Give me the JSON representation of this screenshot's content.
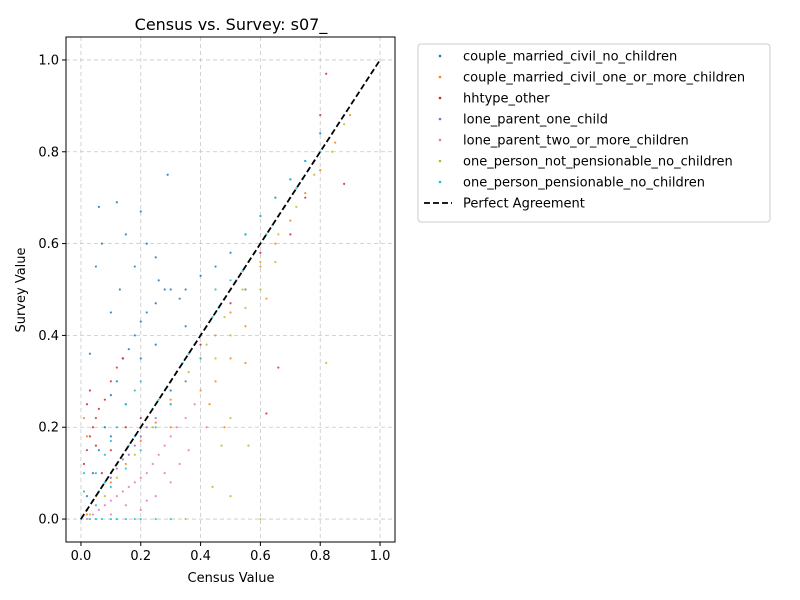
{
  "chart_data": {
    "type": "scatter",
    "title": "Census vs. Survey: s07_",
    "xlabel": "Census Value",
    "ylabel": "Survey Value",
    "xlim": [
      -0.05,
      1.05
    ],
    "ylim": [
      -0.05,
      1.05
    ],
    "xticks": [
      0.0,
      0.2,
      0.4,
      0.6,
      0.8,
      1.0
    ],
    "yticks": [
      0.0,
      0.2,
      0.4,
      0.6,
      0.8,
      1.0
    ],
    "xtick_labels": [
      "0.0",
      "0.2",
      "0.4",
      "0.6",
      "0.8",
      "1.0"
    ],
    "ytick_labels": [
      "0.0",
      "0.2",
      "0.4",
      "0.6",
      "0.8",
      "1.0"
    ],
    "grid": true,
    "grid_style": "dashed",
    "legend_position": "outside-right-top",
    "series": [
      {
        "name": "couple_married_civil_no_children",
        "color": "#1f77b4",
        "points": [
          [
            0.02,
            0.05
          ],
          [
            0.04,
            0.1
          ],
          [
            0.06,
            0.15
          ],
          [
            0.08,
            0.2
          ],
          [
            0.1,
            0.27
          ],
          [
            0.12,
            0.3
          ],
          [
            0.14,
            0.35
          ],
          [
            0.16,
            0.37
          ],
          [
            0.18,
            0.4
          ],
          [
            0.2,
            0.43
          ],
          [
            0.22,
            0.45
          ],
          [
            0.25,
            0.47
          ],
          [
            0.28,
            0.5
          ],
          [
            0.3,
            0.5
          ],
          [
            0.33,
            0.48
          ],
          [
            0.35,
            0.5
          ],
          [
            0.4,
            0.53
          ],
          [
            0.45,
            0.55
          ],
          [
            0.5,
            0.58
          ],
          [
            0.55,
            0.62
          ],
          [
            0.6,
            0.66
          ],
          [
            0.65,
            0.7
          ],
          [
            0.7,
            0.74
          ],
          [
            0.75,
            0.78
          ],
          [
            0.8,
            0.84
          ],
          [
            0.05,
            0.55
          ],
          [
            0.07,
            0.6
          ],
          [
            0.06,
            0.68
          ],
          [
            0.12,
            0.69
          ],
          [
            0.15,
            0.62
          ],
          [
            0.2,
            0.67
          ],
          [
            0.25,
            0.57
          ],
          [
            0.29,
            0.75
          ],
          [
            0.1,
            0.45
          ],
          [
            0.13,
            0.5
          ],
          [
            0.18,
            0.55
          ],
          [
            0.03,
            0.36
          ],
          [
            0.22,
            0.6
          ],
          [
            0.26,
            0.52
          ],
          [
            0.3,
            0.28
          ],
          [
            0.35,
            0.42
          ],
          [
            0.15,
            0.25
          ],
          [
            0.1,
            0.18
          ],
          [
            0.2,
            0.35
          ],
          [
            0.25,
            0.38
          ]
        ]
      },
      {
        "name": "couple_married_civil_one_or_more_children",
        "color": "#ff7f0e",
        "points": [
          [
            0.02,
            0.01
          ],
          [
            0.05,
            0.05
          ],
          [
            0.1,
            0.08
          ],
          [
            0.15,
            0.12
          ],
          [
            0.2,
            0.17
          ],
          [
            0.25,
            0.21
          ],
          [
            0.3,
            0.26
          ],
          [
            0.35,
            0.3
          ],
          [
            0.4,
            0.35
          ],
          [
            0.45,
            0.4
          ],
          [
            0.5,
            0.45
          ],
          [
            0.55,
            0.5
          ],
          [
            0.6,
            0.55
          ],
          [
            0.65,
            0.6
          ],
          [
            0.7,
            0.65
          ],
          [
            0.75,
            0.71
          ],
          [
            0.8,
            0.76
          ],
          [
            0.85,
            0.82
          ],
          [
            0.9,
            0.88
          ],
          [
            0.45,
            0.3
          ],
          [
            0.5,
            0.35
          ],
          [
            0.55,
            0.42
          ],
          [
            0.62,
            0.48
          ],
          [
            0.43,
            0.25
          ],
          [
            0.01,
            0.22
          ],
          [
            0.02,
            0.18
          ],
          [
            0.48,
            0.2
          ],
          [
            0.55,
            0.34
          ],
          [
            0.3,
            0.2
          ],
          [
            0.4,
            0.28
          ]
        ]
      },
      {
        "name": "hhtype_other",
        "color": "#d62728",
        "points": [
          [
            0.01,
            0.12
          ],
          [
            0.02,
            0.15
          ],
          [
            0.03,
            0.18
          ],
          [
            0.04,
            0.2
          ],
          [
            0.05,
            0.22
          ],
          [
            0.06,
            0.24
          ],
          [
            0.08,
            0.26
          ],
          [
            0.1,
            0.3
          ],
          [
            0.12,
            0.33
          ],
          [
            0.14,
            0.35
          ],
          [
            0.02,
            0.25
          ],
          [
            0.03,
            0.28
          ],
          [
            0.05,
            0.16
          ],
          [
            0.07,
            0.1
          ],
          [
            0.1,
            0.15
          ],
          [
            0.15,
            0.2
          ],
          [
            0.2,
            0.22
          ],
          [
            0.3,
            0.3
          ],
          [
            0.4,
            0.38
          ],
          [
            0.5,
            0.47
          ],
          [
            0.6,
            0.58
          ],
          [
            0.62,
            0.23
          ],
          [
            0.82,
            0.97
          ],
          [
            0.8,
            0.88
          ],
          [
            0.66,
            0.33
          ],
          [
            0.7,
            0.62
          ],
          [
            0.75,
            0.7
          ],
          [
            0.88,
            0.73
          ]
        ]
      },
      {
        "name": "lone_parent_one_child",
        "color": "#9467bd",
        "points": [
          [
            0.02,
            0.02
          ],
          [
            0.04,
            0.04
          ],
          [
            0.06,
            0.06
          ],
          [
            0.08,
            0.08
          ],
          [
            0.1,
            0.09
          ],
          [
            0.12,
            0.11
          ],
          [
            0.14,
            0.13
          ],
          [
            0.16,
            0.14
          ],
          [
            0.18,
            0.16
          ],
          [
            0.2,
            0.18
          ],
          [
            0.22,
            0.2
          ],
          [
            0.25,
            0.22
          ]
        ]
      },
      {
        "name": "lone_parent_two_or_more_children",
        "color": "#e377c2",
        "points": [
          [
            0.02,
            0.0
          ],
          [
            0.04,
            0.01
          ],
          [
            0.06,
            0.02
          ],
          [
            0.08,
            0.03
          ],
          [
            0.1,
            0.04
          ],
          [
            0.12,
            0.05
          ],
          [
            0.14,
            0.06
          ],
          [
            0.16,
            0.07
          ],
          [
            0.18,
            0.08
          ],
          [
            0.2,
            0.09
          ],
          [
            0.22,
            0.1
          ],
          [
            0.24,
            0.12
          ],
          [
            0.26,
            0.14
          ],
          [
            0.28,
            0.16
          ],
          [
            0.3,
            0.18
          ],
          [
            0.32,
            0.2
          ],
          [
            0.35,
            0.22
          ],
          [
            0.38,
            0.25
          ],
          [
            0.2,
            0.02
          ],
          [
            0.25,
            0.05
          ],
          [
            0.3,
            0.08
          ],
          [
            0.33,
            0.12
          ],
          [
            0.36,
            0.15
          ],
          [
            0.42,
            0.2
          ],
          [
            0.1,
            0.01
          ],
          [
            0.15,
            0.03
          ],
          [
            0.22,
            0.04
          ],
          [
            0.28,
            0.1
          ]
        ]
      },
      {
        "name": "one_person_not_pensionable_no_children",
        "color": "#bcbd22",
        "points": [
          [
            0.03,
            0.01
          ],
          [
            0.08,
            0.05
          ],
          [
            0.12,
            0.09
          ],
          [
            0.18,
            0.14
          ],
          [
            0.24,
            0.2
          ],
          [
            0.3,
            0.25
          ],
          [
            0.36,
            0.32
          ],
          [
            0.42,
            0.38
          ],
          [
            0.48,
            0.44
          ],
          [
            0.54,
            0.5
          ],
          [
            0.6,
            0.56
          ],
          [
            0.66,
            0.62
          ],
          [
            0.72,
            0.68
          ],
          [
            0.78,
            0.75
          ],
          [
            0.84,
            0.8
          ],
          [
            0.88,
            0.86
          ],
          [
            0.5,
            0.4
          ],
          [
            0.55,
            0.46
          ],
          [
            0.6,
            0.5
          ],
          [
            0.65,
            0.56
          ],
          [
            0.45,
            0.35
          ],
          [
            0.47,
            0.16
          ],
          [
            0.5,
            0.22
          ],
          [
            0.6,
            0.0
          ],
          [
            0.35,
            0.0
          ],
          [
            0.56,
            0.16
          ],
          [
            0.82,
            0.34
          ],
          [
            0.44,
            0.07
          ],
          [
            0.5,
            0.05
          ]
        ]
      },
      {
        "name": "one_person_pensionable_no_children",
        "color": "#17becf",
        "points": [
          [
            0.0,
            0.0
          ],
          [
            0.02,
            0.02
          ],
          [
            0.04,
            0.04
          ],
          [
            0.06,
            0.06
          ],
          [
            0.08,
            0.08
          ],
          [
            0.1,
            0.1
          ],
          [
            0.12,
            0.12
          ],
          [
            0.14,
            0.14
          ],
          [
            0.16,
            0.16
          ],
          [
            0.18,
            0.18
          ],
          [
            0.2,
            0.2
          ],
          [
            0.22,
            0.22
          ],
          [
            0.24,
            0.24
          ],
          [
            0.26,
            0.26
          ],
          [
            0.28,
            0.28
          ],
          [
            0.3,
            0.3
          ],
          [
            0.32,
            0.32
          ],
          [
            0.34,
            0.34
          ],
          [
            0.36,
            0.36
          ],
          [
            0.38,
            0.38
          ],
          [
            0.4,
            0.4
          ],
          [
            0.42,
            0.42
          ],
          [
            0.44,
            0.44
          ],
          [
            0.46,
            0.46
          ],
          [
            0.48,
            0.48
          ],
          [
            0.5,
            0.5
          ],
          [
            0.52,
            0.52
          ],
          [
            0.54,
            0.54
          ],
          [
            0.56,
            0.56
          ],
          [
            0.58,
            0.58
          ],
          [
            0.6,
            0.6
          ],
          [
            0.62,
            0.62
          ],
          [
            0.64,
            0.64
          ],
          [
            0.66,
            0.66
          ],
          [
            0.68,
            0.68
          ],
          [
            0.7,
            0.7
          ],
          [
            0.72,
            0.72
          ],
          [
            0.74,
            0.74
          ],
          [
            0.76,
            0.76
          ],
          [
            0.78,
            0.78
          ],
          [
            0.8,
            0.8
          ],
          [
            0.05,
            0.1
          ],
          [
            0.08,
            0.14
          ],
          [
            0.1,
            0.17
          ],
          [
            0.12,
            0.2
          ],
          [
            0.15,
            0.25
          ],
          [
            0.18,
            0.28
          ],
          [
            0.2,
            0.3
          ],
          [
            0.05,
            0.03
          ],
          [
            0.1,
            0.07
          ],
          [
            0.15,
            0.11
          ],
          [
            0.2,
            0.15
          ],
          [
            0.25,
            0.2
          ],
          [
            0.3,
            0.25
          ],
          [
            0.35,
            0.3
          ],
          [
            0.4,
            0.35
          ],
          [
            0.05,
            0.0
          ],
          [
            0.1,
            0.0
          ],
          [
            0.15,
            0.0
          ],
          [
            0.2,
            0.0
          ],
          [
            0.25,
            0.0
          ],
          [
            0.3,
            0.0
          ],
          [
            0.03,
            0.0
          ],
          [
            0.07,
            0.0
          ],
          [
            0.12,
            0.0
          ],
          [
            0.18,
            0.0
          ],
          [
            0.55,
            0.62
          ],
          [
            0.6,
            0.66
          ],
          [
            0.65,
            0.7
          ],
          [
            0.7,
            0.74
          ],
          [
            0.75,
            0.78
          ],
          [
            0.5,
            0.52
          ],
          [
            0.45,
            0.5
          ],
          [
            0.55,
            0.5
          ],
          [
            0.01,
            0.1
          ],
          [
            0.01,
            0.06
          ]
        ]
      }
    ],
    "reference_line": {
      "name": "Perfect Agreement",
      "color": "#000000",
      "points": [
        [
          0.0,
          0.0
        ],
        [
          1.0,
          1.0
        ]
      ],
      "style": "dashed"
    }
  }
}
